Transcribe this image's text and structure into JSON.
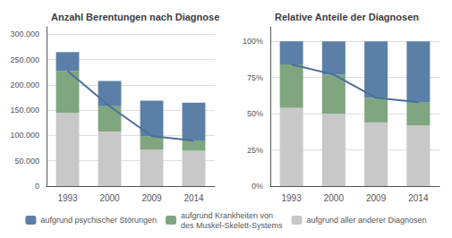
{
  "chart_data": [
    {
      "type": "bar",
      "title": "Anzahl Berentungen nach Diagnose",
      "categories": [
        "1993",
        "2000",
        "2009",
        "2014"
      ],
      "stacked": true,
      "grid": true,
      "legend": "bottom",
      "ylim": [
        0,
        315000
      ],
      "yticks": [
        0,
        {
          "value": 50000,
          "label": "50.000"
        },
        {
          "value": 100000,
          "label": "100.000"
        },
        {
          "value": 150000,
          "label": "150.000"
        },
        {
          "value": 200000,
          "label": "200.000"
        },
        {
          "value": 250000,
          "label": "250.000"
        },
        {
          "value": 300000,
          "label": "300.000"
        }
      ],
      "series": [
        {
          "name": "aufgrund aller anderer Diagnosen",
          "color": "#c8c8c8",
          "values": [
            145000,
            108000,
            72000,
            70000
          ]
        },
        {
          "name": "aufgrund Krankheiten von\ndes Muskel-Skelett-Systems",
          "color": "#7fa67f",
          "values": [
            83000,
            50000,
            27000,
            20000
          ]
        },
        {
          "name": "aufgrund psychischer Störungen",
          "color": "#5b7fa6",
          "values": [
            37000,
            50000,
            70000,
            75000
          ]
        },
        {
          "type": "line",
          "color": "#4a6f9a",
          "values": [
            228000,
            158000,
            99000,
            90000
          ]
        }
      ]
    },
    {
      "type": "bar",
      "title": "Relative Anteile der Diagnosen",
      "categories": [
        "1993",
        "2000",
        "2009",
        "2014"
      ],
      "stacked": true,
      "grid": true,
      "legend": "bottom",
      "ylim": [
        0,
        110
      ],
      "yticks": [
        {
          "value": 0,
          "label": "0%"
        },
        {
          "value": 25,
          "label": "25%"
        },
        {
          "value": 50,
          "label": "50%"
        },
        {
          "value": 75,
          "label": "75%"
        },
        {
          "value": 100,
          "label": "100%"
        }
      ],
      "series": [
        {
          "name": "aufgrund aller anderer Diagnosen",
          "color": "#c8c8c8",
          "values": [
            54,
            50,
            44,
            42
          ]
        },
        {
          "name": "aufgrund Krankheiten von\ndes Muskel-Skelett-Systems",
          "color": "#7fa67f",
          "values": [
            30,
            27,
            17,
            16
          ]
        },
        {
          "name": "aufgrund psychischer Störungen",
          "color": "#5b7fa6",
          "values": [
            16,
            23,
            39,
            42
          ]
        },
        {
          "type": "line",
          "color": "#4a6f9a",
          "values": [
            84,
            77,
            61,
            58
          ]
        }
      ]
    }
  ]
}
